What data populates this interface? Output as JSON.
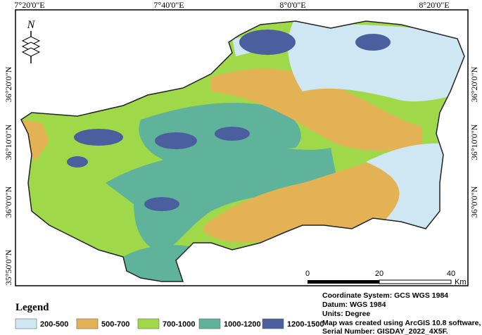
{
  "map_frame": {
    "top_labels": [
      "7°20'0\"E",
      "7°40'0\"E",
      "8°0'0\"E",
      "8°20'0\"E"
    ],
    "left_labels": [
      "36°20'0\"N",
      "36°10'0\"N",
      "36°0'0\"N",
      "35°50'0\"N"
    ],
    "right_labels": [
      "36°20'0\"N",
      "36°10'0\"N",
      "36°0'0\"N"
    ]
  },
  "north_arrow": "N",
  "legend": {
    "title": "Legend",
    "items": [
      {
        "label": "200-500",
        "color": "#cfe6f3"
      },
      {
        "label": "500-700",
        "color": "#e3b255"
      },
      {
        "label": "700-1000",
        "color": "#9fd94a"
      },
      {
        "label": "1000-1200",
        "color": "#5fb39a"
      },
      {
        "label": "1200-1500",
        "color": "#4b5f9e"
      }
    ]
  },
  "scale_bar": {
    "ticks": [
      0,
      20,
      40
    ],
    "unit": "Km"
  },
  "info": [
    "Coordinate System: GCS WGS 1984",
    "Datum: WGS 1984",
    "Units: Degree",
    "Map was created using ArcGIS 10.8 software,",
    "Serial Number: GISDAY_2022_4X5F."
  ]
}
